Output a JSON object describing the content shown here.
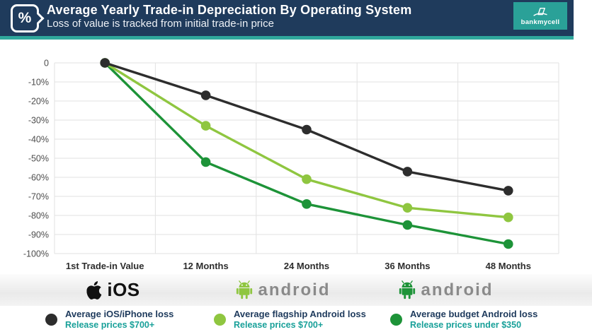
{
  "header": {
    "title": "Average Yearly Trade-in Depreciation By Operating System",
    "subtitle": "Loss of value is tracked from initial trade-in price",
    "percent_symbol": "%",
    "logo_text": "bankmycell",
    "colors": {
      "header_bg": "#1f3b5c",
      "accent_teal": "#2fa79c"
    }
  },
  "chart_data": {
    "type": "line",
    "title": "Average Yearly Trade-in Depreciation By Operating System",
    "categories": [
      "1st Trade-in Value",
      "12 Months",
      "24 Months",
      "36 Months",
      "48 Months"
    ],
    "series": [
      {
        "name": "Average iOS/iPhone loss",
        "color": "#2d2d2d",
        "values": [
          0,
          -17,
          -35,
          -57,
          -67
        ]
      },
      {
        "name": "Average flagship Android loss",
        "color": "#8fc640",
        "values": [
          0,
          -33,
          -61,
          -76,
          -81
        ]
      },
      {
        "name": "Average budget Android loss",
        "color": "#1d9338",
        "values": [
          0,
          -52,
          -74,
          -85,
          -95
        ]
      }
    ],
    "ylim": [
      -100,
      0
    ],
    "ytick_step": 10,
    "ytick_labels": [
      "0",
      "-10%",
      "-20%",
      "-30%",
      "-40%",
      "-50%",
      "-60%",
      "-70%",
      "-80%",
      "-90%",
      "-100%"
    ],
    "grid": true,
    "grid_color": "#e2e2e2",
    "axis_label_color": "#4d4d4d",
    "xlabel_color": "#2d2d2d",
    "legend_position": "bottom"
  },
  "os_logos": [
    {
      "label": "iOS",
      "icon": "apple-icon",
      "color": "#111111"
    },
    {
      "label": "android",
      "icon": "android-robot-icon",
      "color": "#8fc640"
    },
    {
      "label": "android",
      "icon": "android-robot-icon",
      "color": "#1d9338"
    }
  ],
  "legend": [
    {
      "label": "Average iOS/iPhone loss",
      "sublabel": "Release prices $700+",
      "color": "#2d2d2d"
    },
    {
      "label": "Average flagship Android loss",
      "sublabel": "Release prices $700+",
      "color": "#8fc640"
    },
    {
      "label": "Average budget Android loss",
      "sublabel": "Release prices under $350",
      "color": "#1d9338"
    }
  ]
}
